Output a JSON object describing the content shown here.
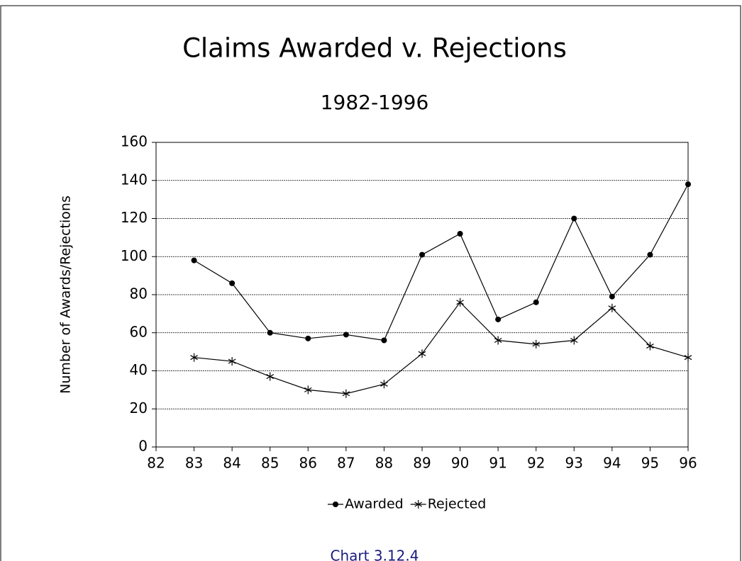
{
  "chart_data": {
    "type": "line",
    "title": "Claims Awarded v. Rejections",
    "subtitle": "1982-1996",
    "y_label": "Number of Awards/Rejections",
    "caption": "Chart 3.12.4",
    "categories": [
      "82",
      "83",
      "84",
      "85",
      "86",
      "87",
      "88",
      "89",
      "90",
      "91",
      "92",
      "93",
      "94",
      "95",
      "96"
    ],
    "series": [
      {
        "name": "Awarded",
        "color": "#000000",
        "marker": "circle",
        "values": [
          null,
          98,
          86,
          60,
          57,
          59,
          56,
          101,
          112,
          67,
          76,
          120,
          79,
          101,
          138
        ]
      },
      {
        "name": "Rejected",
        "color": "#000000",
        "marker": "star",
        "values": [
          null,
          47,
          45,
          37,
          30,
          28,
          33,
          49,
          76,
          56,
          54,
          56,
          73,
          53,
          47
        ]
      }
    ],
    "ylim": [
      0,
      160
    ],
    "yticks": [
      0,
      20,
      40,
      60,
      80,
      100,
      120,
      140,
      160
    ],
    "grid": true,
    "legend": "bottom"
  }
}
